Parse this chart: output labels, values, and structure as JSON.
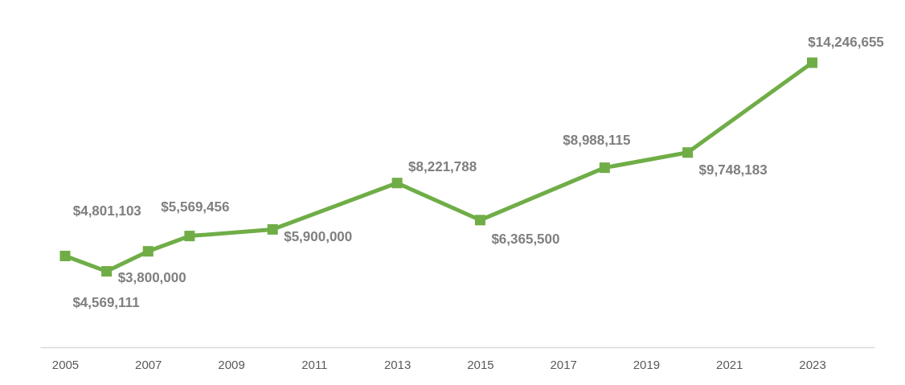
{
  "chart_data": {
    "type": "line",
    "x": [
      2005,
      2006,
      2007,
      2008,
      2010,
      2013,
      2015,
      2018,
      2020,
      2023
    ],
    "series": [
      {
        "color": "#70ad47",
        "values": [
          4569111,
          3800000,
          4801103,
          5569456,
          5900000,
          8221788,
          6365500,
          8988115,
          9748183,
          14246655
        ],
        "value_labels": [
          "$4,569,111",
          "$3,800,000",
          "$4,801,103",
          "$5,569,456",
          "$5,900,000",
          "$8,221,788",
          "$6,365,500",
          "$8,988,115",
          "$9,748,183",
          "$14,246,655"
        ]
      }
    ],
    "xlim": [
      2004.4,
      2024.5
    ],
    "xticks": [
      2005,
      2007,
      2009,
      2011,
      2013,
      2015,
      2017,
      2019,
      2021,
      2023
    ],
    "tick_labels": "x",
    "grid": false,
    "marker": "square",
    "line_style": "solid"
  }
}
